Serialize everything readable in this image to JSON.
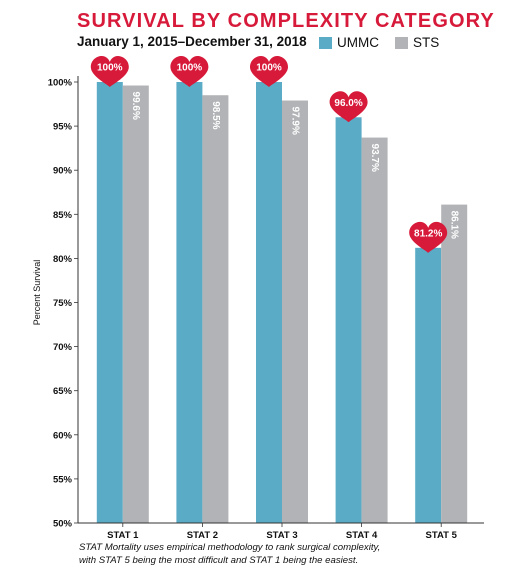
{
  "header": {
    "title": "SURVIVAL BY COMPLEXITY CATEGORY",
    "subtitle": "January 1, 2015–December 31, 2018"
  },
  "legend": {
    "items": [
      {
        "label": "UMMC",
        "color": "#5aabc6"
      },
      {
        "label": "STS",
        "color": "#b1b3b6"
      }
    ]
  },
  "colors": {
    "accent": "#d7193a",
    "ummc": "#5aabc6",
    "sts": "#b1b3b6",
    "heart": "#d7193a"
  },
  "chart_data": {
    "type": "bar",
    "title": "SURVIVAL BY COMPLEXITY CATEGORY",
    "subtitle": "January 1, 2015–December 31, 2018",
    "ylabel": "Percent Survival",
    "xlabel": "",
    "ylim": [
      50,
      100
    ],
    "yticks": [
      50,
      55,
      60,
      65,
      70,
      75,
      80,
      85,
      90,
      95,
      100
    ],
    "ytick_labels": [
      "50%",
      "55%",
      "60%",
      "65%",
      "70%",
      "75%",
      "80%",
      "85%",
      "90%",
      "95%",
      "100%"
    ],
    "categories": [
      "STAT 1",
      "STAT 2",
      "STAT 3",
      "STAT 4",
      "STAT 5"
    ],
    "series": [
      {
        "name": "UMMC",
        "values": [
          100,
          100,
          100,
          96.0,
          81.2
        ],
        "labels": [
          "100%",
          "100%",
          "100%",
          "96.0%",
          "81.2%"
        ],
        "label_style": "heart"
      },
      {
        "name": "STS",
        "values": [
          99.6,
          98.5,
          97.9,
          93.7,
          86.1
        ],
        "labels": [
          "99.6%",
          "98.5%",
          "97.9%",
          "93.7%",
          "86.1%"
        ],
        "label_style": "vertical"
      }
    ],
    "grid": false,
    "legend_position": "top-right"
  },
  "footnote": {
    "line1": "STAT Mortality uses empirical methodology to rank surgical complexity,",
    "line2": "with STAT 5 being the most difficult and STAT 1 being the easiest."
  }
}
